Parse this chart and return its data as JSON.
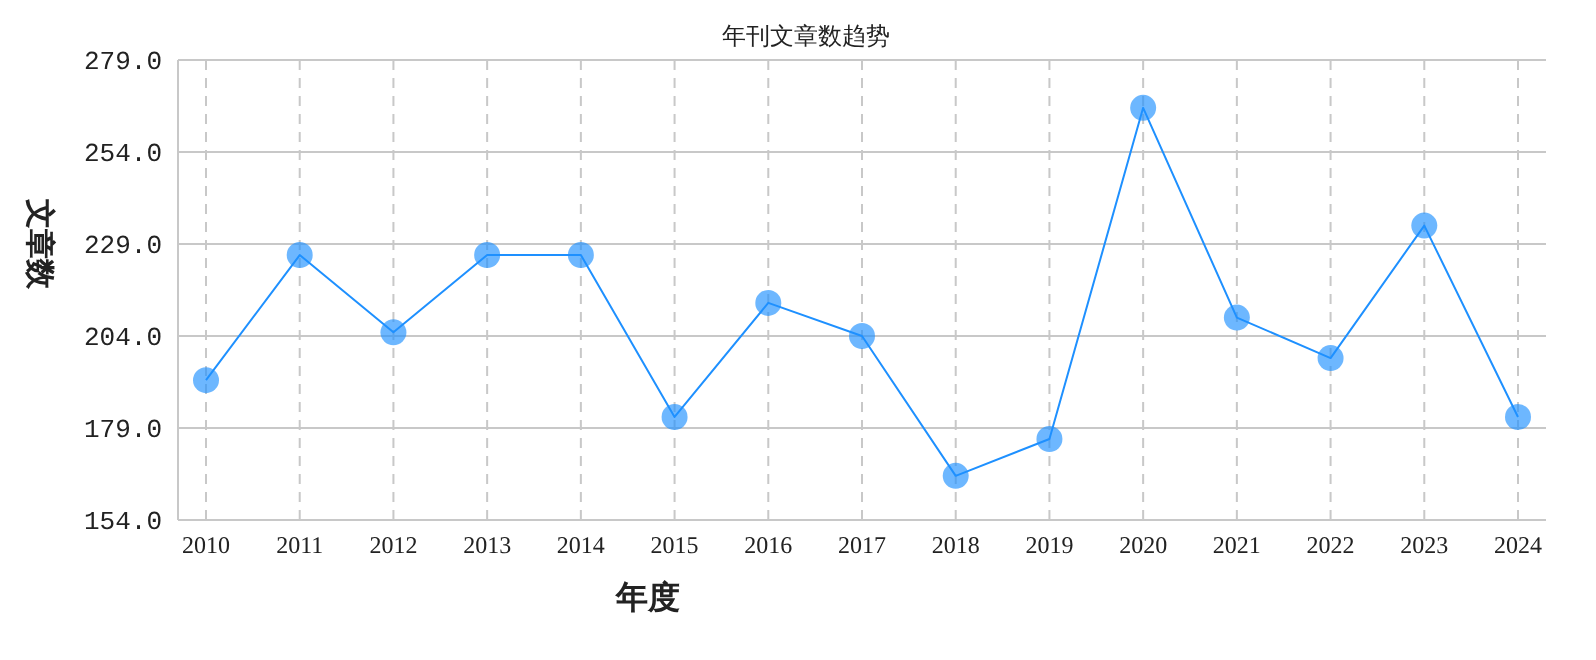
{
  "chart_data": {
    "type": "line",
    "title": "年刊文章数趋势",
    "xlabel": "年度",
    "ylabel": "文章数",
    "categories": [
      "2010",
      "2011",
      "2012",
      "2013",
      "2014",
      "2015",
      "2016",
      "2017",
      "2018",
      "2019",
      "2020",
      "2021",
      "2022",
      "2023",
      "2024"
    ],
    "series": [
      {
        "color": "#1e90ff",
        "values": [
          192,
          226,
          205,
          226,
          226,
          182,
          213,
          204,
          166,
          176,
          266,
          209,
          198,
          234,
          182
        ]
      }
    ],
    "ylim": [
      154,
      279
    ],
    "yticks": [
      {
        "value": 154,
        "label": "154.0"
      },
      {
        "value": 179,
        "label": "179.0"
      },
      {
        "value": 204,
        "label": "204.0"
      },
      {
        "value": 229,
        "label": "229.0"
      },
      {
        "value": 254,
        "label": "254.0"
      },
      {
        "value": 279,
        "label": "279.0"
      }
    ],
    "grid": true,
    "marker": "circle",
    "line_style": "solid"
  }
}
